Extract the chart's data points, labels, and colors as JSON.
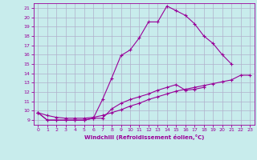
{
  "xlabel": "Windchill (Refroidissement éolien,°C)",
  "bg_color": "#c8ecec",
  "grid_color": "#b0b0cc",
  "line_color": "#990099",
  "xlim": [
    -0.5,
    23.5
  ],
  "ylim": [
    8.5,
    21.5
  ],
  "xticks": [
    0,
    1,
    2,
    3,
    4,
    5,
    6,
    7,
    8,
    9,
    10,
    11,
    12,
    13,
    14,
    15,
    16,
    17,
    18,
    19,
    20,
    21,
    22,
    23
  ],
  "yticks": [
    9,
    10,
    11,
    12,
    13,
    14,
    15,
    16,
    17,
    18,
    19,
    20,
    21
  ],
  "line1_x": [
    0,
    1,
    2,
    3,
    4,
    5,
    6,
    7,
    8,
    9,
    10,
    11,
    12,
    13,
    14,
    15,
    16,
    17,
    18,
    19,
    20,
    21
  ],
  "line1_y": [
    9.8,
    9.0,
    9.0,
    9.0,
    9.0,
    9.0,
    9.2,
    11.2,
    13.5,
    15.9,
    16.5,
    17.8,
    19.5,
    19.5,
    21.2,
    20.7,
    20.2,
    19.3,
    18.0,
    17.2,
    16.0,
    15.0
  ],
  "line2_x": [
    0,
    1,
    2,
    3,
    4,
    5,
    6,
    7,
    8,
    9,
    10,
    11,
    12,
    13,
    14,
    15,
    16,
    17,
    18
  ],
  "line2_y": [
    9.8,
    9.0,
    9.0,
    9.0,
    9.0,
    9.0,
    9.2,
    9.2,
    10.2,
    10.8,
    11.2,
    11.5,
    11.8,
    12.2,
    12.5,
    12.8,
    12.2,
    12.3,
    12.5
  ],
  "line3_x": [
    0,
    1,
    2,
    3,
    4,
    5,
    6,
    7,
    8,
    9,
    10,
    11,
    12,
    13,
    14,
    15,
    16,
    17,
    18,
    19,
    20,
    21,
    22,
    23
  ],
  "line3_y": [
    9.8,
    9.5,
    9.3,
    9.2,
    9.2,
    9.2,
    9.3,
    9.5,
    9.8,
    10.1,
    10.5,
    10.8,
    11.2,
    11.5,
    11.8,
    12.1,
    12.3,
    12.5,
    12.7,
    12.9,
    13.1,
    13.3,
    13.8,
    13.8
  ],
  "marker": "+"
}
